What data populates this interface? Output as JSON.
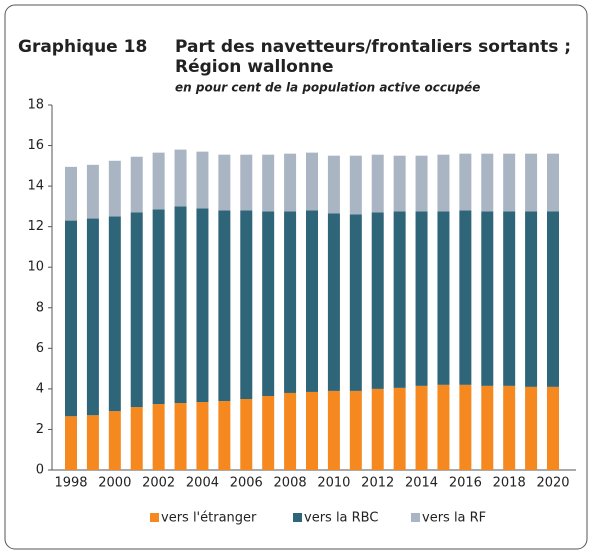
{
  "chart_data": {
    "type": "stacked_bar",
    "label": "Graphique 18",
    "title": [
      "Part des navetteurs/frontaliers sortants ;",
      "Région wallonne"
    ],
    "subtitle": "en pour cent de la population active occupée",
    "categories": [
      "1998",
      null,
      "2000",
      null,
      "2002",
      null,
      "2004",
      null,
      "2006",
      null,
      "2008",
      null,
      "2010",
      null,
      "2012",
      null,
      "2014",
      null,
      "2016",
      null,
      "2018",
      null,
      "2020"
    ],
    "series": [
      {
        "name": "vers l'étranger",
        "color": "#f5891f",
        "values": [
          2.65,
          2.7,
          2.9,
          3.1,
          3.25,
          3.3,
          3.35,
          3.4,
          3.5,
          3.65,
          3.8,
          3.85,
          3.9,
          3.9,
          4.0,
          4.05,
          4.15,
          4.2,
          4.2,
          4.15,
          4.15,
          4.1,
          4.1
        ]
      },
      {
        "name": "vers la RBC",
        "color": "#2e6578",
        "values": [
          9.65,
          9.7,
          9.6,
          9.6,
          9.6,
          9.7,
          9.55,
          9.4,
          9.3,
          9.1,
          8.95,
          8.95,
          8.75,
          8.7,
          8.7,
          8.7,
          8.6,
          8.55,
          8.6,
          8.6,
          8.6,
          8.65,
          8.65
        ]
      },
      {
        "name": "vers la RF",
        "color": "#a9b5c3",
        "values": [
          2.65,
          2.65,
          2.75,
          2.75,
          2.8,
          2.8,
          2.8,
          2.75,
          2.75,
          2.8,
          2.85,
          2.85,
          2.85,
          2.9,
          2.85,
          2.75,
          2.75,
          2.8,
          2.8,
          2.85,
          2.85,
          2.85,
          2.85
        ]
      }
    ],
    "ylim": [
      0,
      18
    ],
    "yticks": [
      0,
      2,
      4,
      6,
      8,
      10,
      12,
      14,
      16,
      18
    ],
    "grid": false,
    "legend": "bottom"
  }
}
